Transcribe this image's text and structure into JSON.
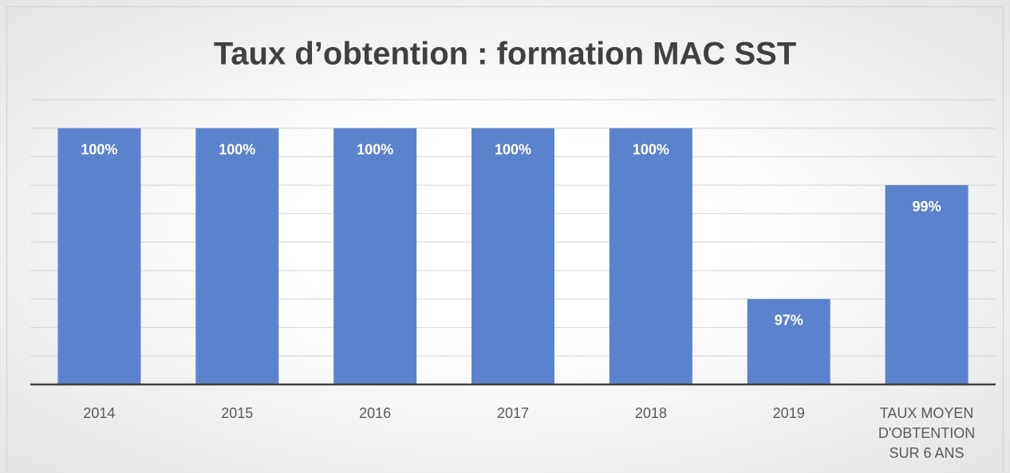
{
  "chart_data": {
    "type": "bar",
    "title": "Taux d’obtention : formation MAC SST",
    "categories": [
      "2014",
      "2015",
      "2016",
      "2017",
      "2018",
      "2019",
      "TAUX MOYEN D'OBTENTION SUR 6 ANS"
    ],
    "values": [
      100,
      100,
      100,
      100,
      100,
      97,
      99
    ],
    "value_labels": [
      "100%",
      "100%",
      "100%",
      "100%",
      "100%",
      "97%",
      "99%"
    ],
    "color": "#5b83cd",
    "ylim": [
      95.5,
      100.5
    ],
    "yticks": [
      95.5,
      96,
      96.5,
      97,
      97.5,
      98,
      98.5,
      99,
      99.5,
      100,
      100.5
    ],
    "grid": true
  }
}
